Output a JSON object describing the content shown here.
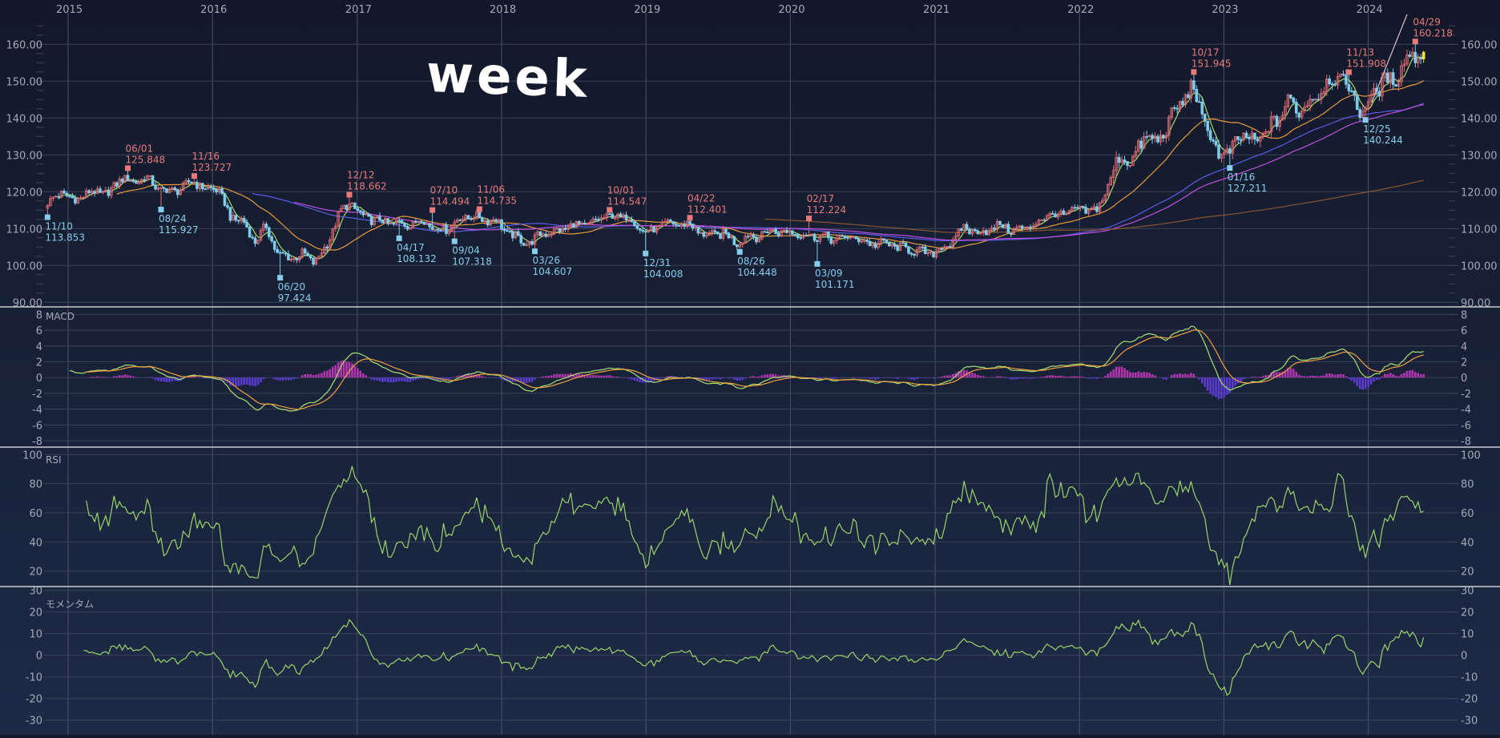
{
  "chart_data": [
    {
      "type": "candlestick",
      "panel": "price",
      "interval": "weekly",
      "annotation": "week",
      "x_ticks": [
        "2015",
        "2016",
        "2017",
        "2018",
        "2019",
        "2020",
        "2021",
        "2022",
        "2023",
        "2024"
      ],
      "y_ticks": [
        "160.00",
        "150.00",
        "140.00",
        "130.00",
        "120.00",
        "110.00",
        "100.00",
        "90.00"
      ],
      "ylim": [
        90,
        165
      ],
      "grid": true,
      "months": [
        "2014-11",
        "2014-12",
        "2015-01",
        "2015-02",
        "2015-03",
        "2015-04",
        "2015-05",
        "2015-06",
        "2015-07",
        "2015-08",
        "2015-09",
        "2015-10",
        "2015-11",
        "2015-12",
        "2016-01",
        "2016-02",
        "2016-03",
        "2016-04",
        "2016-05",
        "2016-06",
        "2016-07",
        "2016-08",
        "2016-09",
        "2016-10",
        "2016-11",
        "2016-12",
        "2017-01",
        "2017-02",
        "2017-03",
        "2017-04",
        "2017-05",
        "2017-06",
        "2017-07",
        "2017-08",
        "2017-09",
        "2017-10",
        "2017-11",
        "2017-12",
        "2018-01",
        "2018-02",
        "2018-03",
        "2018-04",
        "2018-05",
        "2018-06",
        "2018-07",
        "2018-08",
        "2018-09",
        "2018-10",
        "2018-11",
        "2018-12",
        "2019-01",
        "2019-02",
        "2019-03",
        "2019-04",
        "2019-05",
        "2019-06",
        "2019-07",
        "2019-08",
        "2019-09",
        "2019-10",
        "2019-11",
        "2019-12",
        "2020-01",
        "2020-02",
        "2020-03",
        "2020-04",
        "2020-05",
        "2020-06",
        "2020-07",
        "2020-08",
        "2020-09",
        "2020-10",
        "2020-11",
        "2020-12",
        "2021-01",
        "2021-02",
        "2021-03",
        "2021-04",
        "2021-05",
        "2021-06",
        "2021-07",
        "2021-08",
        "2021-09",
        "2021-10",
        "2021-11",
        "2021-12",
        "2022-01",
        "2022-02",
        "2022-03",
        "2022-04",
        "2022-05",
        "2022-06",
        "2022-07",
        "2022-08",
        "2022-09",
        "2022-10",
        "2022-11",
        "2022-12",
        "2023-01",
        "2023-02",
        "2023-03",
        "2023-04",
        "2023-05",
        "2023-06",
        "2023-07",
        "2023-08",
        "2023-09",
        "2023-10",
        "2023-11",
        "2023-12",
        "2024-01",
        "2024-02",
        "2024-03",
        "2024-04",
        "2024-05"
      ],
      "close": [
        117,
        120,
        117.5,
        119.5,
        120,
        119.5,
        124,
        122.5,
        124,
        121,
        120,
        121,
        123,
        120.5,
        121,
        113,
        112.5,
        106.5,
        110.5,
        103,
        102,
        103,
        101,
        105,
        114,
        117,
        113,
        112.5,
        111.5,
        111.5,
        111,
        112.5,
        110,
        110,
        112.5,
        113.5,
        112.5,
        112.5,
        109,
        107,
        106,
        109,
        109,
        110.5,
        111,
        111,
        113.5,
        113,
        113.5,
        110,
        109,
        111.5,
        111,
        111.5,
        109,
        108,
        109,
        106,
        108,
        108,
        109.5,
        109,
        109,
        108,
        108,
        107,
        107.5,
        107.5,
        106,
        106,
        105.5,
        104.5,
        104,
        103,
        104.5,
        106.5,
        110.5,
        109,
        109.5,
        111,
        109.5,
        110,
        111.5,
        114,
        113.5,
        115,
        115,
        115,
        122,
        130,
        128,
        135.5,
        133,
        139,
        144.5,
        148.5,
        138,
        131,
        130,
        136,
        133,
        136,
        139.5,
        144.5,
        142,
        145.5,
        149,
        151.5,
        148,
        141,
        147,
        150,
        151.3,
        157.5,
        157
      ],
      "highs": [
        {
          "date": "2015-06-01",
          "label": "06/01",
          "value": "125.848"
        },
        {
          "date": "2015-11-16",
          "label": "11/16",
          "value": "123.727"
        },
        {
          "date": "2016-12-12",
          "label": "12/12",
          "value": "118.662"
        },
        {
          "date": "2017-07-10",
          "label": "07/10",
          "value": "114.494"
        },
        {
          "date": "2017-11-06",
          "label": "11/06",
          "value": "114.735"
        },
        {
          "date": "2018-10-01",
          "label": "10/01",
          "value": "114.547"
        },
        {
          "date": "2019-04-22",
          "label": "04/22",
          "value": "112.401"
        },
        {
          "date": "2020-02-17",
          "label": "02/17",
          "value": "112.224"
        },
        {
          "date": "2022-10-17",
          "label": "10/17",
          "value": "151.945"
        },
        {
          "date": "2023-11-13",
          "label": "11/13",
          "value": "151.908"
        },
        {
          "date": "2024-04-29",
          "label": "04/29",
          "value": "160.218"
        }
      ],
      "lows": [
        {
          "date": "2014-11-10",
          "label": "11/10",
          "value": "113.853"
        },
        {
          "date": "2015-08-24",
          "label": "08/24",
          "value": "115.927"
        },
        {
          "date": "2016-06-20",
          "label": "06/20",
          "value": "97.424"
        },
        {
          "date": "2017-04-17",
          "label": "04/17",
          "value": "108.132"
        },
        {
          "date": "2017-09-04",
          "label": "09/04",
          "value": "107.318"
        },
        {
          "date": "2018-03-26",
          "label": "03/26",
          "value": "104.607"
        },
        {
          "date": "2018-12-31",
          "label": "12/31",
          "value": "104.008"
        },
        {
          "date": "2019-08-26",
          "label": "08/26",
          "value": "104.448"
        },
        {
          "date": "2020-03-09",
          "label": "03/09",
          "value": "101.171"
        },
        {
          "date": "2023-01-16",
          "label": "01/16",
          "value": "127.211"
        },
        {
          "date": "2023-12-25",
          "label": "12/25",
          "value": "140.244"
        }
      ],
      "colors": {
        "up": "#e06c75",
        "down": "#7ecbea",
        "high_marker": "#e87a7a",
        "low_marker": "#86cdea",
        "last": "#ffe033",
        "trendline": "#d8c2cc"
      },
      "moving_average_colors": [
        "#a8d86a",
        "#e89a3c",
        "#5c5ce6",
        "#c050e0",
        "#8a5530"
      ]
    },
    {
      "type": "line",
      "panel": "macd",
      "title": "MACD",
      "y_ticks": [
        "8",
        "6",
        "4",
        "2",
        "0",
        "-2",
        "-4",
        "-6",
        "-8"
      ],
      "ylim": [
        -8,
        8
      ],
      "colors": {
        "macd": "#a8e070",
        "signal": "#f0a040",
        "hist_pos": "#b535b0",
        "hist_neg": "#5a3cd0"
      }
    },
    {
      "type": "line",
      "panel": "rsi",
      "title": "RSI",
      "y_ticks": [
        "100",
        "80",
        "60",
        "40",
        "20"
      ],
      "ylim": [
        10,
        100
      ],
      "colors": {
        "line": "#9ad468"
      }
    },
    {
      "type": "line",
      "panel": "momentum",
      "title": "モメンタム",
      "y_ticks": [
        "30",
        "20",
        "10",
        "0",
        "-10",
        "-20",
        "-30"
      ],
      "ylim": [
        -30,
        30
      ],
      "colors": {
        "line": "#9ad468"
      }
    }
  ]
}
